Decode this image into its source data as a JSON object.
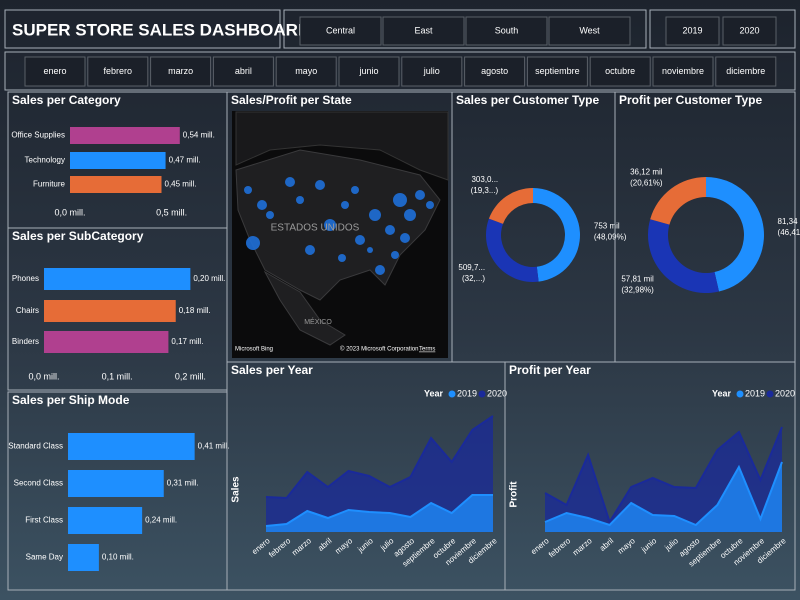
{
  "header": {
    "title": "SUPER STORE SALES DASHBOARD"
  },
  "filters": {
    "regions": [
      "Central",
      "East",
      "South",
      "West"
    ],
    "years": [
      "2019",
      "2020"
    ],
    "months": [
      "enero",
      "febrero",
      "marzo",
      "abril",
      "mayo",
      "junio",
      "julio",
      "agosto",
      "septiembre",
      "octubre",
      "noviembre",
      "diciembre"
    ]
  },
  "map": {
    "title": "Sales/Profit per State",
    "labels": [
      "ESTADOS UNIDOS",
      "MÉXICO"
    ],
    "logo": "Microsoft Bing",
    "attribution": "© 2023 Microsoft Corporation",
    "terms": "Terms"
  },
  "chart_data": [
    {
      "type": "hbar",
      "title": "Sales per Category",
      "categories": [
        "Office Supplies",
        "Technology",
        "Furniture"
      ],
      "values": [
        0.54,
        0.47,
        0.45
      ],
      "value_labels": [
        "0,54 mill.",
        "0,47 mill.",
        "0,45 mill."
      ],
      "colors": [
        "#b0408f",
        "#1e8fff",
        "#e66c37"
      ],
      "xlim": [
        0,
        0.6
      ],
      "xticks": [
        {
          "value": 0,
          "label": "0,0 mill."
        },
        {
          "value": 0.5,
          "label": "0,5 mill."
        }
      ]
    },
    {
      "type": "hbar",
      "title": "Sales per SubCategory",
      "categories": [
        "Phones",
        "Chairs",
        "Binders"
      ],
      "values": [
        0.2,
        0.18,
        0.17
      ],
      "value_labels": [
        "0,20 mill.",
        "0,18 mill.",
        "0,17 mill."
      ],
      "colors": [
        "#1e8fff",
        "#e66c37",
        "#b0408f"
      ],
      "xlim": [
        0,
        0.22
      ],
      "xticks": [
        {
          "value": 0,
          "label": "0,0 mill."
        },
        {
          "value": 0.1,
          "label": "0,1 mill."
        },
        {
          "value": 0.2,
          "label": "0,2 mill."
        }
      ]
    },
    {
      "type": "hbar",
      "title": "Sales per Ship Mode",
      "categories": [
        "Standard Class",
        "Second Class",
        "First Class",
        "Same Day"
      ],
      "values": [
        0.41,
        0.31,
        0.24,
        0.1
      ],
      "value_labels": [
        "0,41 mill.",
        "0,31 mill.",
        "0,24 mill.",
        "0,10 mill."
      ],
      "colors": [
        "#1e8fff",
        "#1e8fff",
        "#1e8fff",
        "#1e8fff"
      ],
      "xlim": [
        0,
        0.45
      ]
    },
    {
      "type": "donut",
      "title": "Sales per Customer Type",
      "values": [
        753,
        509.7,
        303.0
      ],
      "value_labels": [
        "753 mil",
        "509,7...",
        "303,0..."
      ],
      "percents": [
        48.09,
        32,
        19.3
      ],
      "percent_labels": [
        "(48,09%)",
        "(32,...)",
        "(19,3...)"
      ],
      "colors": [
        "#1e8fff",
        "#1a35b5",
        "#e66c37"
      ]
    },
    {
      "type": "donut",
      "title": "Profit per Customer Type",
      "values": [
        81.34,
        57.81,
        36.12
      ],
      "value_labels": [
        "81,34 mil",
        "57,81 mil",
        "36,12 mil"
      ],
      "percents": [
        46.41,
        32.98,
        20.61
      ],
      "percent_labels": [
        "(46,41%)",
        "(32,98%)",
        "(20,61%)"
      ],
      "colors": [
        "#1e8fff",
        "#1a35b5",
        "#e66c37"
      ]
    },
    {
      "type": "area",
      "title": "Sales per Year",
      "ylabel": "Sales",
      "legend_title": "Year",
      "categories": [
        "enero",
        "febrero",
        "marzo",
        "abril",
        "mayo",
        "junio",
        "julio",
        "agosto",
        "septiembre",
        "octubre",
        "noviembre",
        "diciembre"
      ],
      "ylim": [
        0,
        125
      ],
      "series": [
        {
          "name": "2019",
          "color": "#1e8fff",
          "values": [
            6,
            8,
            21,
            14,
            22,
            20,
            19,
            15,
            29,
            19,
            37,
            37
          ]
        },
        {
          "name": "2020",
          "color": "#1a2a9a",
          "values": [
            35,
            34,
            60,
            45,
            61,
            56,
            45,
            55,
            94,
            70,
            102,
            116
          ]
        }
      ]
    },
    {
      "type": "area",
      "title": "Profit per Year",
      "ylabel": "Profit",
      "legend_title": "Year",
      "categories": [
        "enero",
        "febrero",
        "marzo",
        "abril",
        "mayo",
        "junio",
        "julio",
        "agosto",
        "septiembre",
        "octubre",
        "noviembre",
        "diciembre"
      ],
      "ylim": [
        0,
        115
      ],
      "series": [
        {
          "name": "2019",
          "color": "#1e8fff",
          "values": [
            10,
            19,
            14,
            7,
            29,
            17,
            16,
            7,
            27,
            65,
            13,
            70
          ]
        },
        {
          "name": "2020",
          "color": "#1a2a9a",
          "values": [
            39,
            27,
            77,
            10,
            45,
            54,
            45,
            44,
            82,
            100,
            52,
            105
          ]
        }
      ]
    }
  ]
}
